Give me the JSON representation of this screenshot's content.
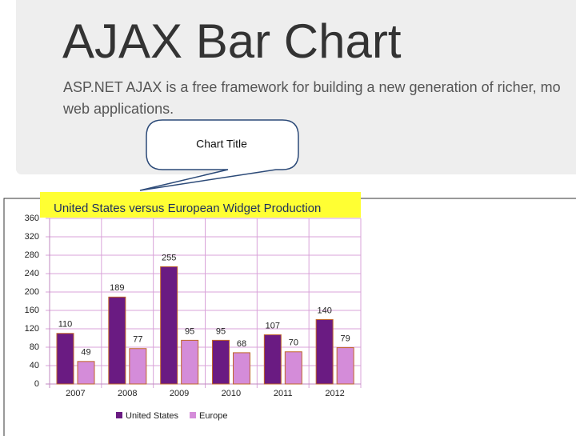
{
  "header": {
    "title": "AJAX Bar Chart",
    "description": [
      "ASP.NET AJAX is a free framework for building a new generation of richer, mo",
      "web applications."
    ]
  },
  "callout": {
    "label": "Chart Title"
  },
  "chart_data": {
    "type": "bar",
    "title": "United States versus European Widget Production",
    "categories": [
      "2007",
      "2008",
      "2009",
      "2010",
      "2011",
      "2012"
    ],
    "series": [
      {
        "name": "United States",
        "color": "#6a1b82",
        "values": [
          110,
          189,
          255,
          95,
          107,
          140
        ]
      },
      {
        "name": "Europe",
        "color": "#d48cd9",
        "values": [
          49,
          77,
          95,
          68,
          70,
          79
        ]
      }
    ],
    "ylim": [
      0,
      360
    ],
    "yticks": [
      0,
      40,
      80,
      120,
      160,
      200,
      240,
      280,
      320,
      360
    ],
    "grid": true,
    "legend": "bottom"
  }
}
